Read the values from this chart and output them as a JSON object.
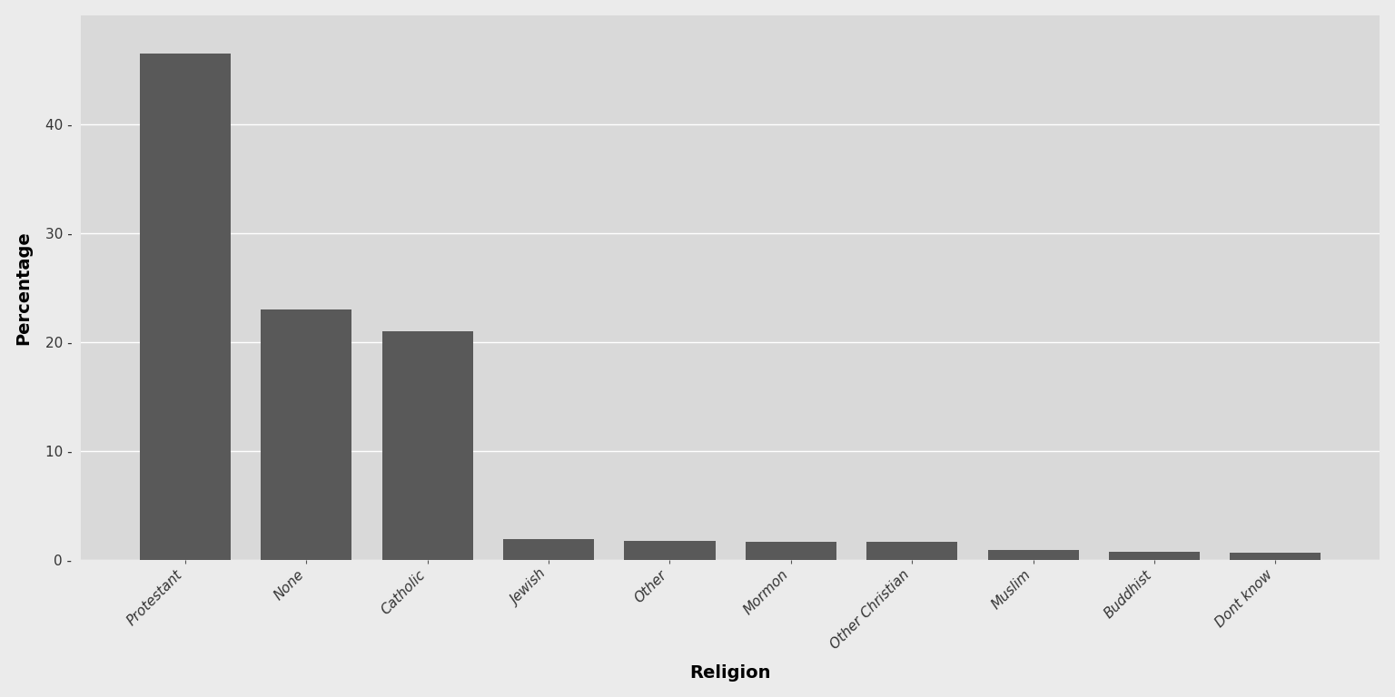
{
  "categories": [
    "Protestant",
    "None",
    "Catholic",
    "Jewish",
    "Other",
    "Mormon",
    "Other Christian",
    "Muslim",
    "Buddhist",
    "Dont know"
  ],
  "values": [
    46.5,
    23.0,
    21.0,
    1.9,
    1.7,
    1.6,
    1.6,
    0.9,
    0.7,
    0.6
  ],
  "bar_color": "#595959",
  "figure_background": "#EBEBEB",
  "panel_background": "#D9D9D9",
  "grid_color": "#FFFFFF",
  "xlabel": "Religion",
  "ylabel": "Percentage",
  "ylim": [
    0,
    50
  ],
  "yticks": [
    0,
    10,
    20,
    30,
    40
  ],
  "ytick_labels": [
    "0 -",
    "10 -",
    "20 -",
    "30 -",
    "40 -"
  ],
  "axis_label_fontsize": 14,
  "tick_label_fontsize": 11,
  "bar_width": 0.75
}
